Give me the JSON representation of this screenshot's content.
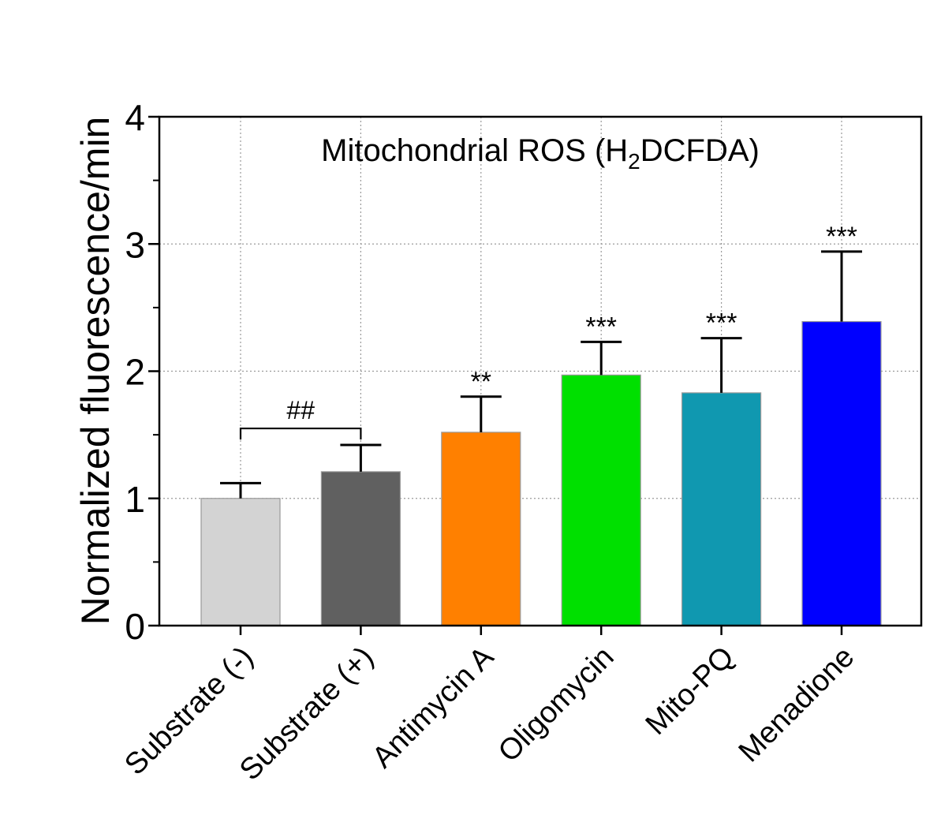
{
  "chart_data": {
    "type": "bar",
    "title_prefix": "Mitochondrial ROS (H",
    "title_sub": "2",
    "title_suffix": "DCFDA)",
    "ylabel": "Normalized fluorescence/min",
    "xlabel": "",
    "ylim": [
      0,
      4
    ],
    "yticks": [
      "0",
      "1",
      "2",
      "3",
      "4"
    ],
    "ytick_values": [
      0,
      1,
      2,
      3,
      4
    ],
    "grid": true,
    "categories": [
      "Substrate (-)",
      "Substrate (+)",
      "Antimycin A",
      "Oligomycin",
      "Mito-PQ",
      "Menadione"
    ],
    "values": [
      1.0,
      1.21,
      1.52,
      1.97,
      1.83,
      2.39
    ],
    "errors": [
      0.12,
      0.21,
      0.28,
      0.26,
      0.43,
      0.55
    ],
    "colors": [
      "#d3d3d3",
      "#606060",
      "#ff8000",
      "#00e000",
      "#1098b0",
      "#0000ff"
    ],
    "significance": [
      "",
      "",
      "**",
      "***",
      "***",
      "***"
    ],
    "comparison": {
      "label": "##",
      "from": 0,
      "to": 1,
      "y": 1.55
    }
  }
}
